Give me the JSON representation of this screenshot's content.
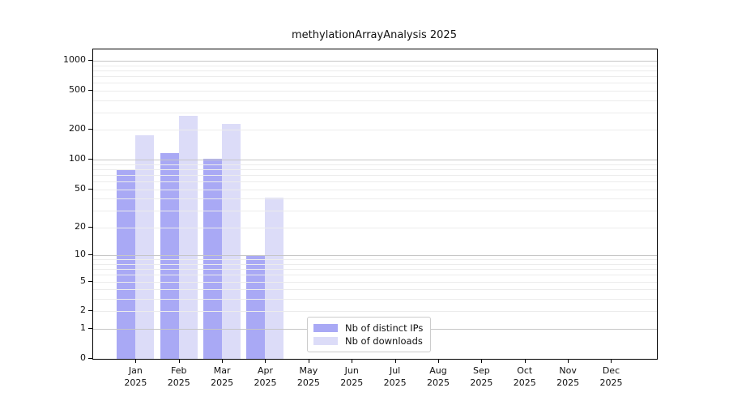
{
  "title": "methylationArrayAnalysis 2025",
  "colors": {
    "ips_bar": "#a9a9f5",
    "downloads_bar": "#dcdcf8",
    "grid_major": "#c6c6c6",
    "grid_minor": "#ececec",
    "axis": "#000000",
    "legend_border": "#cccccc"
  },
  "x_axis": {
    "months": [
      "Jan",
      "Feb",
      "Mar",
      "Apr",
      "May",
      "Jun",
      "Jul",
      "Aug",
      "Sep",
      "Oct",
      "Nov",
      "Dec"
    ],
    "year": "2025"
  },
  "y_axis": {
    "tick_labels": [
      "1000",
      "500",
      "200",
      "100",
      "50",
      "20",
      "10",
      "5",
      "2",
      "1",
      "0"
    ],
    "tick_values": [
      1000,
      500,
      200,
      100,
      50,
      20,
      10,
      5,
      2,
      1,
      0
    ]
  },
  "legend": {
    "items": [
      {
        "label": "Nb of distinct IPs",
        "color_key": "ips_bar"
      },
      {
        "label": "Nb of downloads",
        "color_key": "downloads_bar"
      }
    ]
  },
  "chart_data": {
    "type": "bar",
    "title": "methylationArrayAnalysis 2025",
    "categories": [
      "Jan 2025",
      "Feb 2025",
      "Mar 2025",
      "Apr 2025",
      "May 2025",
      "Jun 2025",
      "Jul 2025",
      "Aug 2025",
      "Sep 2025",
      "Oct 2025",
      "Nov 2025",
      "Dec 2025"
    ],
    "series": [
      {
        "name": "Nb of distinct IPs",
        "color": "#a9a9f5",
        "values": [
          80,
          116,
          102,
          10,
          0,
          0,
          0,
          0,
          0,
          0,
          0,
          0
        ]
      },
      {
        "name": "Nb of downloads",
        "color": "#dcdcf8",
        "values": [
          176,
          280,
          232,
          41,
          0,
          0,
          0,
          0,
          0,
          0,
          0,
          0
        ]
      }
    ],
    "xlabel": "",
    "ylabel": "",
    "y_scale": "log10(value+1)",
    "ylim": [
      0,
      1300
    ],
    "y_ticks": [
      1000,
      500,
      200,
      100,
      50,
      20,
      10,
      5,
      2,
      1,
      0
    ],
    "grid": true,
    "grid_major_at": [
      1,
      10,
      100,
      1000
    ],
    "legend_position": "bottom-center-inside"
  }
}
